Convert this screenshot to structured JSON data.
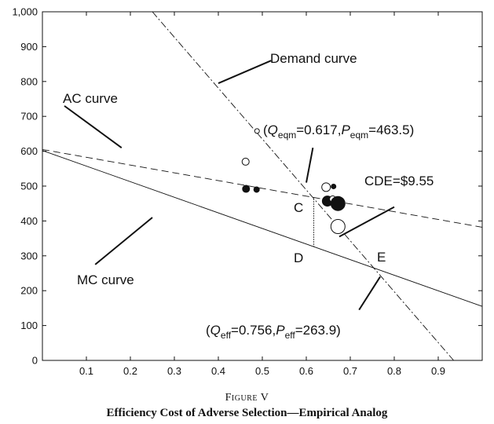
{
  "figure_label": "Figure V",
  "caption": "Efficiency Cost of Adverse Selection—Empirical Analog",
  "chart_data": {
    "type": "scatter",
    "xlim": [
      0,
      1.0
    ],
    "ylim": [
      0,
      1000
    ],
    "x_ticks": [
      0.1,
      0.2,
      0.3,
      0.4,
      0.5,
      0.6,
      0.7,
      0.8,
      0.9
    ],
    "x_tick_labels": [
      "0.1",
      "0.2",
      "0.3",
      "0.4",
      "0.5",
      "0.6",
      "0.7",
      "0.8",
      "0.9"
    ],
    "y_ticks": [
      0,
      100,
      200,
      300,
      400,
      500,
      600,
      700,
      800,
      900,
      1000
    ],
    "y_tick_labels": [
      "0",
      "100",
      "200",
      "300",
      "400",
      "500",
      "600",
      "700",
      "800",
      "900",
      "1,000"
    ],
    "grid": false,
    "curves": [
      {
        "name": "Demand curve",
        "style": "dash-dot",
        "points": [
          [
            0.25,
            1000
          ],
          [
            0.935,
            0
          ]
        ]
      },
      {
        "name": "AC curve",
        "style": "dashed",
        "points": [
          [
            0,
            605
          ],
          [
            1.0,
            382
          ]
        ]
      },
      {
        "name": "MC curve",
        "style": "solid",
        "points": [
          [
            0,
            602
          ],
          [
            1.0,
            155
          ]
        ]
      }
    ],
    "points": [
      {
        "x": 0.488,
        "y": 658,
        "r": 3,
        "filled": false
      },
      {
        "x": 0.462,
        "y": 570,
        "r": 4.5,
        "filled": false
      },
      {
        "x": 0.463,
        "y": 492,
        "r": 4.5,
        "filled": true
      },
      {
        "x": 0.487,
        "y": 490,
        "r": 3.5,
        "filled": true
      },
      {
        "x": 0.645,
        "y": 497,
        "r": 5.5,
        "filled": false
      },
      {
        "x": 0.662,
        "y": 499,
        "r": 3,
        "filled": true
      },
      {
        "x": 0.648,
        "y": 457,
        "r": 6.5,
        "filled": true
      },
      {
        "x": 0.66,
        "y": 463,
        "r": 4,
        "filled": false
      },
      {
        "x": 0.672,
        "y": 450,
        "r": 9,
        "filled": true
      },
      {
        "x": 0.672,
        "y": 384,
        "r": 9,
        "filled": false
      }
    ],
    "segment_CD": {
      "x": 0.617,
      "y1": 463.5,
      "y2": 326
    },
    "annotations": {
      "demand": "Demand curve",
      "ac": "AC curve",
      "mc": "MC curve",
      "C": "C",
      "D": "D",
      "E": "E",
      "cde": "CDE=$9.55",
      "eqm": {
        "open": "(",
        "q": "Q",
        "q_sub": "eqm",
        "q_val": "=0.617,",
        "p": "P",
        "p_sub": "eqm",
        "p_val": "=463.5)"
      },
      "eff": {
        "open": "(",
        "q": "Q",
        "q_sub": "eff",
        "q_val": "=0.756,",
        "p": "P",
        "p_sub": "eff",
        "p_val": "=263.9)"
      }
    },
    "pointer_lines": [
      {
        "from": [
          0.4,
          795
        ],
        "to": [
          0.52,
          860
        ]
      },
      {
        "from": [
          0.18,
          610
        ],
        "to": [
          0.05,
          730
        ]
      },
      {
        "from": [
          0.25,
          410
        ],
        "to": [
          0.12,
          275
        ]
      },
      {
        "from": [
          0.6,
          510
        ],
        "to": [
          0.615,
          610
        ]
      },
      {
        "from": [
          0.675,
          355
        ],
        "to": [
          0.8,
          440
        ]
      },
      {
        "from": [
          0.72,
          145
        ],
        "to": [
          0.768,
          240
        ]
      }
    ]
  }
}
